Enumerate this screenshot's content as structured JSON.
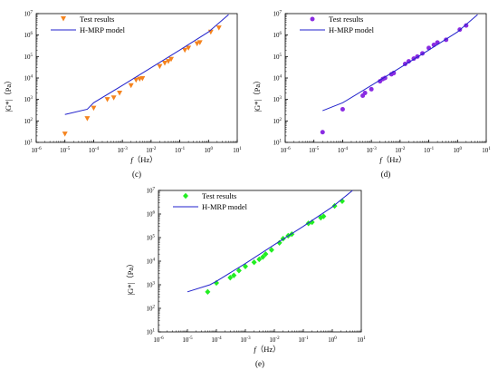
{
  "chart_data": [
    {
      "type": "scatter",
      "panel_label": "(c)",
      "xlabel_var": "f",
      "xlabel_unit": "（Hz）",
      "ylabel": "|G*|（Pa）",
      "x_scale": "log",
      "y_scale": "log",
      "xlim": [
        1e-06,
        10
      ],
      "ylim": [
        10,
        10000000.0
      ],
      "x_tick_exponents": [
        "-6",
        "-5",
        "-4",
        "-3",
        "-2",
        "-1",
        "0",
        "1"
      ],
      "y_tick_exponents": [
        "1",
        "2",
        "3",
        "4",
        "5",
        "6",
        "7"
      ],
      "legend_position": "top-left",
      "series": [
        {
          "name": "Test results",
          "marker": "triangle-down",
          "color": "#f5841f",
          "x": [
            1e-05,
            6e-05,
            0.0001,
            0.0003,
            0.0005,
            0.0008,
            0.002,
            0.003,
            0.004,
            0.005,
            0.02,
            0.03,
            0.04,
            0.05,
            0.15,
            0.2,
            0.4,
            0.5,
            1.2,
            2.3
          ],
          "y": [
            25,
            130,
            400,
            1000,
            1200,
            2000,
            4500,
            8000,
            9000,
            9500,
            35000,
            50000,
            60000,
            75000,
            200000,
            250000,
            400000,
            450000,
            1400000,
            2200000
          ]
        },
        {
          "name": "H-MRP model",
          "marker": "line",
          "color": "#2222cc",
          "x": [
            1e-05,
            6e-05,
            0.0001,
            0.001,
            0.01,
            0.1,
            1,
            5
          ],
          "y": [
            200,
            350,
            700,
            4500,
            30000,
            200000,
            1400000,
            9000000
          ]
        }
      ]
    },
    {
      "type": "scatter",
      "panel_label": "(d)",
      "xlabel_var": "f",
      "xlabel_unit": "（Hz）",
      "ylabel": "|G*|（Pa）",
      "x_scale": "log",
      "y_scale": "log",
      "xlim": [
        1e-06,
        10
      ],
      "ylim": [
        10,
        10000000.0
      ],
      "x_tick_exponents": [
        "-6",
        "-5",
        "-4",
        "-3",
        "-2",
        "-1",
        "0",
        "1"
      ],
      "y_tick_exponents": [
        "1",
        "2",
        "3",
        "4",
        "5",
        "6",
        "7"
      ],
      "legend_position": "top-left",
      "series": [
        {
          "name": "Test results",
          "marker": "circle",
          "color": "#8a2be2",
          "x": [
            2e-05,
            0.0001,
            0.0005,
            0.0006,
            0.001,
            0.002,
            0.0025,
            0.003,
            0.005,
            0.006,
            0.015,
            0.02,
            0.03,
            0.04,
            0.06,
            0.1,
            0.15,
            0.2,
            0.4,
            1.2,
            2
          ],
          "y": [
            30,
            350,
            1500,
            2000,
            3000,
            7000,
            9000,
            10000,
            15000,
            17000,
            45000,
            60000,
            80000,
            100000,
            140000,
            250000,
            350000,
            450000,
            600000,
            1800000,
            2800000
          ]
        },
        {
          "name": "H-MRP model",
          "marker": "line",
          "color": "#2222cc",
          "x": [
            2e-05,
            0.0001,
            0.001,
            0.01,
            0.1,
            1,
            5
          ],
          "y": [
            300,
            700,
            4500,
            30000,
            200000,
            1400000,
            9000000
          ]
        }
      ]
    },
    {
      "type": "scatter",
      "panel_label": "(e)",
      "xlabel_var": "f",
      "xlabel_unit": "（Hz）",
      "ylabel": "|G*|（Pa）",
      "x_scale": "log",
      "y_scale": "log",
      "xlim": [
        1e-06,
        10
      ],
      "ylim": [
        10,
        10000000.0
      ],
      "x_tick_exponents": [
        "-6",
        "-5",
        "-4",
        "-3",
        "-2",
        "-1",
        "0",
        "1"
      ],
      "y_tick_exponents": [
        "1",
        "2",
        "3",
        "4",
        "5",
        "6",
        "7"
      ],
      "legend_position": "top-left",
      "series": [
        {
          "name": "Test results",
          "marker": "diamond",
          "color": "#22ee22",
          "x": [
            5e-05,
            0.0001,
            0.0003,
            0.0004,
            0.0006,
            0.001,
            0.002,
            0.003,
            0.004,
            0.005,
            0.008,
            0.015,
            0.02,
            0.03,
            0.04,
            0.15,
            0.2,
            0.4,
            0.5,
            1.2,
            2.2
          ],
          "y": [
            500,
            1200,
            2000,
            2500,
            4000,
            6000,
            9000,
            12000,
            15000,
            20000,
            30000,
            60000,
            90000,
            120000,
            140000,
            400000,
            450000,
            700000,
            800000,
            2200000,
            3500000
          ]
        },
        {
          "name": "H-MRP model",
          "marker": "line",
          "color": "#2222cc",
          "x": [
            1e-05,
            6e-05,
            0.0001,
            0.001,
            0.01,
            0.1,
            1,
            5
          ],
          "y": [
            500,
            1000,
            1400,
            8000,
            50000,
            300000,
            2000000,
            10000000
          ]
        }
      ]
    }
  ]
}
